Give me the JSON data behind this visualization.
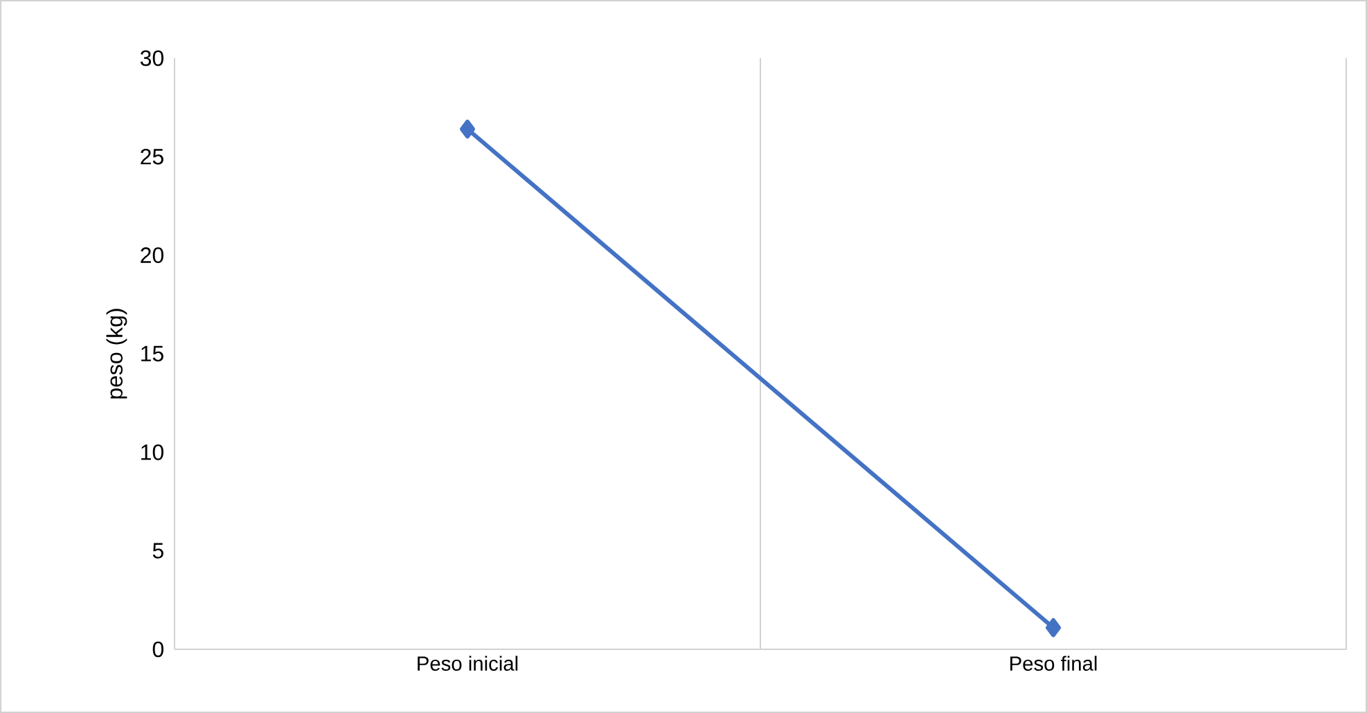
{
  "chart_data": {
    "type": "line",
    "ylabel": "peso (kg)",
    "categories": [
      "Peso inicial",
      "Peso final"
    ],
    "series": [
      {
        "color": "#4472c4",
        "values": [
          26.4,
          1.1
        ]
      }
    ],
    "ylim": [
      0,
      30
    ],
    "yticks": [
      0,
      5,
      10,
      15,
      20,
      25,
      30
    ],
    "grid": "x",
    "marker": "diamond",
    "line_style": "solid"
  }
}
